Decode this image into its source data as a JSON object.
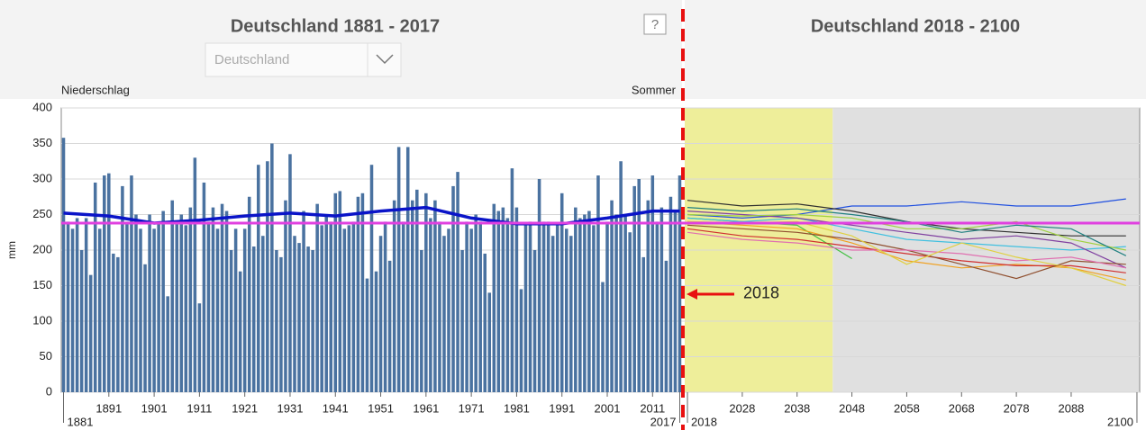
{
  "header": {
    "left_title": "Deutschland 1881 - 2017",
    "right_title": "Deutschland 2018 - 2100",
    "dropdown": "Deutschland",
    "help": "?"
  },
  "chart_data": [
    {
      "type": "bar",
      "subtitle": "Niederschlag",
      "season": "Sommer",
      "ylabel": "mm",
      "color": "#4a72a0",
      "x": [
        1881,
        1882,
        1883,
        1884,
        1885,
        1886,
        1887,
        1888,
        1889,
        1890,
        1891,
        1892,
        1893,
        1894,
        1895,
        1896,
        1897,
        1898,
        1899,
        1900,
        1901,
        1902,
        1903,
        1904,
        1905,
        1906,
        1907,
        1908,
        1909,
        1910,
        1911,
        1912,
        1913,
        1914,
        1915,
        1916,
        1917,
        1918,
        1919,
        1920,
        1921,
        1922,
        1923,
        1924,
        1925,
        1926,
        1927,
        1928,
        1929,
        1930,
        1931,
        1932,
        1933,
        1934,
        1935,
        1936,
        1937,
        1938,
        1939,
        1940,
        1941,
        1942,
        1943,
        1944,
        1945,
        1946,
        1947,
        1948,
        1949,
        1950,
        1951,
        1952,
        1953,
        1954,
        1955,
        1956,
        1957,
        1958,
        1959,
        1960,
        1961,
        1962,
        1963,
        1964,
        1965,
        1966,
        1967,
        1968,
        1969,
        1970,
        1971,
        1972,
        1973,
        1974,
        1975,
        1976,
        1977,
        1978,
        1979,
        1980,
        1981,
        1982,
        1983,
        1984,
        1985,
        1986,
        1987,
        1988,
        1989,
        1990,
        1991,
        1992,
        1993,
        1994,
        1995,
        1996,
        1997,
        1998,
        1999,
        2000,
        2001,
        2002,
        2003,
        2004,
        2005,
        2006,
        2007,
        2008,
        2009,
        2010,
        2011,
        2012,
        2013,
        2014,
        2015,
        2016,
        2017
      ],
      "values": [
        358,
        240,
        230,
        245,
        200,
        245,
        165,
        295,
        230,
        305,
        308,
        195,
        190,
        290,
        240,
        305,
        250,
        230,
        180,
        250,
        230,
        240,
        255,
        135,
        270,
        240,
        250,
        235,
        260,
        330,
        125,
        295,
        240,
        260,
        230,
        265,
        255,
        200,
        230,
        170,
        230,
        275,
        205,
        320,
        220,
        325,
        350,
        200,
        190,
        270,
        335,
        220,
        210,
        255,
        205,
        200,
        265,
        235,
        250,
        240,
        280,
        283,
        230,
        235,
        240,
        275,
        280,
        160,
        320,
        170,
        220,
        240,
        185,
        270,
        345,
        240,
        345,
        270,
        285,
        200,
        280,
        245,
        270,
        240,
        220,
        230,
        290,
        310,
        200,
        240,
        230,
        250,
        240,
        195,
        140,
        265,
        255,
        260,
        245,
        315,
        260,
        145,
        235,
        240,
        200,
        300,
        240,
        240,
        220,
        235,
        280,
        230,
        220,
        260,
        245,
        250,
        255,
        235,
        305,
        155,
        240,
        270,
        250,
        325,
        250,
        225,
        290,
        300,
        190,
        270,
        305,
        240,
        260,
        185,
        275,
        255,
        305
      ],
      "trend": {
        "color": "#0a14c8",
        "x": [
          1881,
          1891,
          1901,
          1911,
          1921,
          1931,
          1941,
          1951,
          1961,
          1971,
          1981,
          1991,
          2001,
          2011,
          2017
        ],
        "values": [
          252,
          248,
          238,
          242,
          248,
          252,
          248,
          255,
          260,
          245,
          237,
          237,
          245,
          255,
          255
        ]
      },
      "mean": {
        "value": 238,
        "color": "#e040e0"
      },
      "xlim": [
        1880.5,
        2017.5
      ],
      "xticks": [
        1891,
        1901,
        1911,
        1921,
        1931,
        1941,
        1951,
        1961,
        1971,
        1981,
        1991,
        2001,
        2011
      ],
      "edge_labels": [
        1881,
        2017
      ],
      "ylim": [
        0,
        400
      ],
      "yticks": [
        0,
        50,
        100,
        150,
        200,
        250,
        300,
        350,
        400
      ],
      "grid": true
    },
    {
      "type": "line",
      "xlim": [
        2017.5,
        2100.5
      ],
      "ylim": [
        0,
        400
      ],
      "xticks": [
        2028,
        2038,
        2048,
        2058,
        2068,
        2078,
        2088
      ],
      "edge_labels": [
        2018,
        2100
      ],
      "bands": [
        {
          "from": 2017.5,
          "to": 2044.5,
          "color": "#eeee9a"
        },
        {
          "from": 2044.5,
          "to": 2100.5,
          "color": "#e0e0e0"
        }
      ],
      "annotation": {
        "text": "2018",
        "y": 138,
        "color": "#e81010"
      },
      "series": [
        {
          "color": "#2050e0",
          "x": [
            2018,
            2028,
            2038,
            2048,
            2058,
            2068,
            2078,
            2088,
            2098
          ],
          "values": [
            250,
            245,
            250,
            262,
            262,
            268,
            262,
            262,
            272
          ]
        },
        {
          "color": "#40c040",
          "x": [
            2018,
            2028,
            2038,
            2048
          ],
          "values": [
            245,
            240,
            235,
            188
          ]
        },
        {
          "color": "#303030",
          "x": [
            2018,
            2028,
            2038,
            2048,
            2058,
            2068,
            2078,
            2088,
            2098
          ],
          "values": [
            270,
            262,
            265,
            255,
            240,
            230,
            225,
            220,
            220
          ]
        },
        {
          "color": "#f0a020",
          "x": [
            2018,
            2028,
            2038,
            2048,
            2058,
            2068,
            2078,
            2088,
            2098
          ],
          "values": [
            240,
            235,
            230,
            210,
            185,
            175,
            180,
            175,
            158
          ]
        },
        {
          "color": "#d03030",
          "x": [
            2018,
            2028,
            2038,
            2048,
            2058,
            2068,
            2078,
            2088,
            2098
          ],
          "values": [
            230,
            220,
            215,
            205,
            195,
            185,
            178,
            178,
            168
          ]
        },
        {
          "color": "#40c0e0",
          "x": [
            2018,
            2028,
            2038,
            2048,
            2058,
            2068,
            2078,
            2088,
            2098
          ],
          "values": [
            245,
            240,
            245,
            230,
            215,
            210,
            205,
            200,
            205
          ]
        },
        {
          "color": "#8040a0",
          "x": [
            2018,
            2028,
            2038,
            2048,
            2058,
            2068,
            2078,
            2088,
            2098
          ],
          "values": [
            255,
            250,
            245,
            235,
            225,
            215,
            220,
            210,
            175
          ]
        },
        {
          "color": "#905030",
          "x": [
            2018,
            2028,
            2038,
            2048,
            2058,
            2068,
            2078,
            2088,
            2098
          ],
          "values": [
            235,
            230,
            225,
            215,
            200,
            180,
            160,
            185,
            180
          ]
        },
        {
          "color": "#a0d040",
          "x": [
            2018,
            2028,
            2038,
            2048,
            2058,
            2068,
            2078,
            2088,
            2098
          ],
          "values": [
            250,
            248,
            250,
            245,
            230,
            230,
            240,
            215,
            200
          ]
        },
        {
          "color": "#e070b0",
          "x": [
            2018,
            2028,
            2038,
            2048,
            2058,
            2068,
            2078,
            2088,
            2098
          ],
          "values": [
            225,
            215,
            210,
            200,
            200,
            195,
            185,
            190,
            175
          ]
        },
        {
          "color": "#208080",
          "x": [
            2018,
            2028,
            2038,
            2048,
            2058,
            2068,
            2078,
            2088,
            2098
          ],
          "values": [
            260,
            255,
            258,
            250,
            240,
            225,
            235,
            230,
            192
          ]
        },
        {
          "color": "#e0d040",
          "x": [
            2018,
            2028,
            2038,
            2048,
            2058,
            2068,
            2078,
            2088,
            2098
          ],
          "values": [
            240,
            238,
            240,
            220,
            180,
            210,
            190,
            175,
            150
          ]
        }
      ]
    }
  ]
}
